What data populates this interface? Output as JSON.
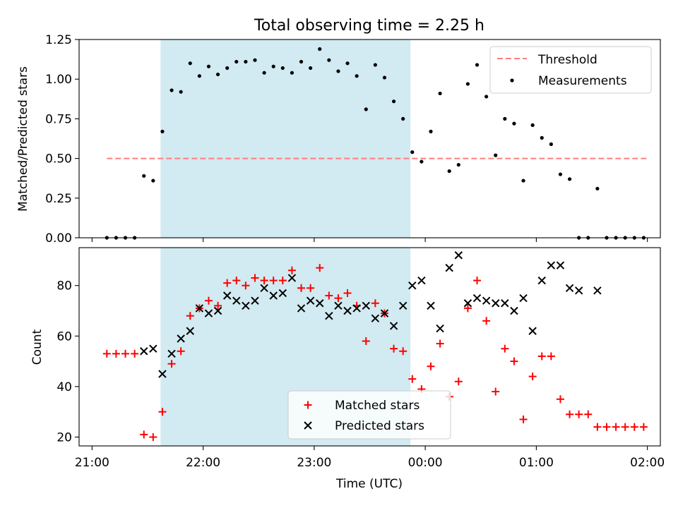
{
  "figure": {
    "title": "Total observing time = 2.25 h",
    "xlabel": "Time (UTC)"
  },
  "colors": {
    "shade": "#add8e6",
    "threshold": "#ff7f7f",
    "measurement": "#000000",
    "matched": "#ff0000",
    "predicted": "#000000"
  },
  "chart_data": [
    {
      "type": "scatter",
      "panel": "top",
      "ylabel": "Matched/Predicted stars",
      "xlim": [
        "20:53",
        "02:07"
      ],
      "ylim": [
        0,
        1.25
      ],
      "yticks": [
        0.0,
        0.25,
        0.5,
        0.75,
        1.0,
        1.25
      ],
      "ytick_labels": [
        "0.00",
        "0.25",
        "0.50",
        "0.75",
        "1.00",
        "1.25"
      ],
      "grid": false,
      "legend_position": "top-right",
      "shaded_span": [
        "21:37",
        "23:52"
      ],
      "threshold": {
        "name": "Threshold",
        "style": "dashed",
        "y": 0.5,
        "x_range": [
          "21:08",
          "02:00"
        ]
      },
      "series": [
        {
          "name": "Measurements",
          "x": [
            "21:08",
            "21:13",
            "21:18",
            "21:23",
            "21:28",
            "21:33",
            "21:38",
            "21:43",
            "21:48",
            "21:53",
            "21:58",
            "22:03",
            "22:08",
            "22:13",
            "22:18",
            "22:23",
            "22:28",
            "22:33",
            "22:38",
            "22:43",
            "22:48",
            "22:53",
            "22:58",
            "23:03",
            "23:08",
            "23:13",
            "23:18",
            "23:23",
            "23:28",
            "23:33",
            "23:38",
            "23:43",
            "23:48",
            "23:53",
            "23:58",
            "00:03",
            "00:08",
            "00:13",
            "00:18",
            "00:23",
            "00:28",
            "00:33",
            "00:38",
            "00:43",
            "00:48",
            "00:53",
            "00:58",
            "01:03",
            "01:08",
            "01:13",
            "01:18",
            "01:23",
            "01:28",
            "01:33",
            "01:38",
            "01:43",
            "01:48",
            "01:53",
            "01:58"
          ],
          "y": [
            0,
            0,
            0,
            0,
            0.39,
            0.36,
            0.67,
            0.93,
            0.92,
            1.1,
            1.02,
            1.08,
            1.03,
            1.07,
            1.11,
            1.11,
            1.12,
            1.04,
            1.08,
            1.07,
            1.04,
            1.11,
            1.07,
            1.19,
            1.12,
            1.05,
            1.1,
            1.02,
            0.81,
            1.09,
            1.01,
            0.86,
            0.75,
            0.54,
            0.48,
            0.67,
            0.91,
            0.42,
            0.46,
            0.97,
            1.09,
            0.89,
            0.52,
            0.75,
            0.72,
            0.36,
            0.71,
            0.63,
            0.59,
            0.4,
            0.37,
            0,
            0,
            0.31,
            0,
            0,
            0,
            0,
            0
          ]
        }
      ]
    },
    {
      "type": "scatter",
      "panel": "bottom",
      "ylabel": "Count",
      "xlim": [
        "20:53",
        "02:07"
      ],
      "ylim": [
        16.5,
        95
      ],
      "yticks": [
        20,
        40,
        60,
        80
      ],
      "ytick_labels": [
        "20",
        "40",
        "60",
        "80"
      ],
      "xticks": [
        "21:00",
        "22:00",
        "23:00",
        "00:00",
        "01:00",
        "02:00"
      ],
      "xtick_labels": [
        "21:00",
        "22:00",
        "23:00",
        "00:00",
        "01:00",
        "02:00"
      ],
      "grid": false,
      "legend_position": "bottom-center",
      "shaded_span": [
        "21:37",
        "23:52"
      ],
      "series": [
        {
          "name": "Matched stars",
          "marker": "+",
          "x": [
            "21:08",
            "21:13",
            "21:18",
            "21:23",
            "21:28",
            "21:33",
            "21:38",
            "21:43",
            "21:48",
            "21:53",
            "21:58",
            "22:03",
            "22:08",
            "22:13",
            "22:18",
            "22:23",
            "22:28",
            "22:33",
            "22:38",
            "22:43",
            "22:48",
            "22:53",
            "22:58",
            "23:03",
            "23:08",
            "23:13",
            "23:18",
            "23:23",
            "23:28",
            "23:33",
            "23:38",
            "23:43",
            "23:48",
            "23:53",
            "23:58",
            "00:03",
            "00:08",
            "00:13",
            "00:18",
            "00:23",
            "00:28",
            "00:33",
            "00:38",
            "00:43",
            "00:48",
            "00:53",
            "00:58",
            "01:03",
            "01:08",
            "01:13",
            "01:18",
            "01:23",
            "01:28",
            "01:33",
            "01:38",
            "01:43",
            "01:48",
            "01:53",
            "01:58"
          ],
          "y": [
            53,
            53,
            53,
            53,
            21,
            20,
            30,
            49,
            54,
            68,
            71,
            74,
            72,
            81,
            82,
            80,
            83,
            82,
            82,
            82,
            86,
            79,
            79,
            87,
            76,
            75,
            77,
            72,
            58,
            73,
            69,
            55,
            54,
            43,
            39,
            48,
            57,
            36,
            42,
            71,
            82,
            66,
            38,
            55,
            50,
            27,
            44,
            52,
            52,
            35,
            29,
            29,
            29,
            24,
            24,
            24,
            24,
            24,
            24
          ]
        },
        {
          "name": "Predicted stars",
          "marker": "x",
          "x": [
            "21:28",
            "21:33",
            "21:38",
            "21:43",
            "21:48",
            "21:53",
            "21:58",
            "22:03",
            "22:08",
            "22:13",
            "22:18",
            "22:23",
            "22:28",
            "22:33",
            "22:38",
            "22:43",
            "22:48",
            "22:53",
            "22:58",
            "23:03",
            "23:08",
            "23:13",
            "23:18",
            "23:23",
            "23:28",
            "23:33",
            "23:38",
            "23:43",
            "23:48",
            "23:53",
            "23:58",
            "00:03",
            "00:08",
            "00:13",
            "00:18",
            "00:23",
            "00:28",
            "00:33",
            "00:38",
            "00:43",
            "00:48",
            "00:53",
            "00:58",
            "01:03",
            "01:08",
            "01:13",
            "01:18",
            "01:23",
            "01:33"
          ],
          "y": [
            54,
            55,
            45,
            53,
            59,
            62,
            71,
            69,
            70,
            76,
            74,
            72,
            74,
            79,
            76,
            77,
            83,
            71,
            74,
            73,
            68,
            72,
            70,
            71,
            72,
            67,
            69,
            64,
            72,
            80,
            82,
            72,
            63,
            87,
            92,
            73,
            75,
            74,
            73,
            73,
            70,
            75,
            62,
            82,
            88,
            88,
            79,
            78,
            78
          ]
        }
      ]
    }
  ]
}
